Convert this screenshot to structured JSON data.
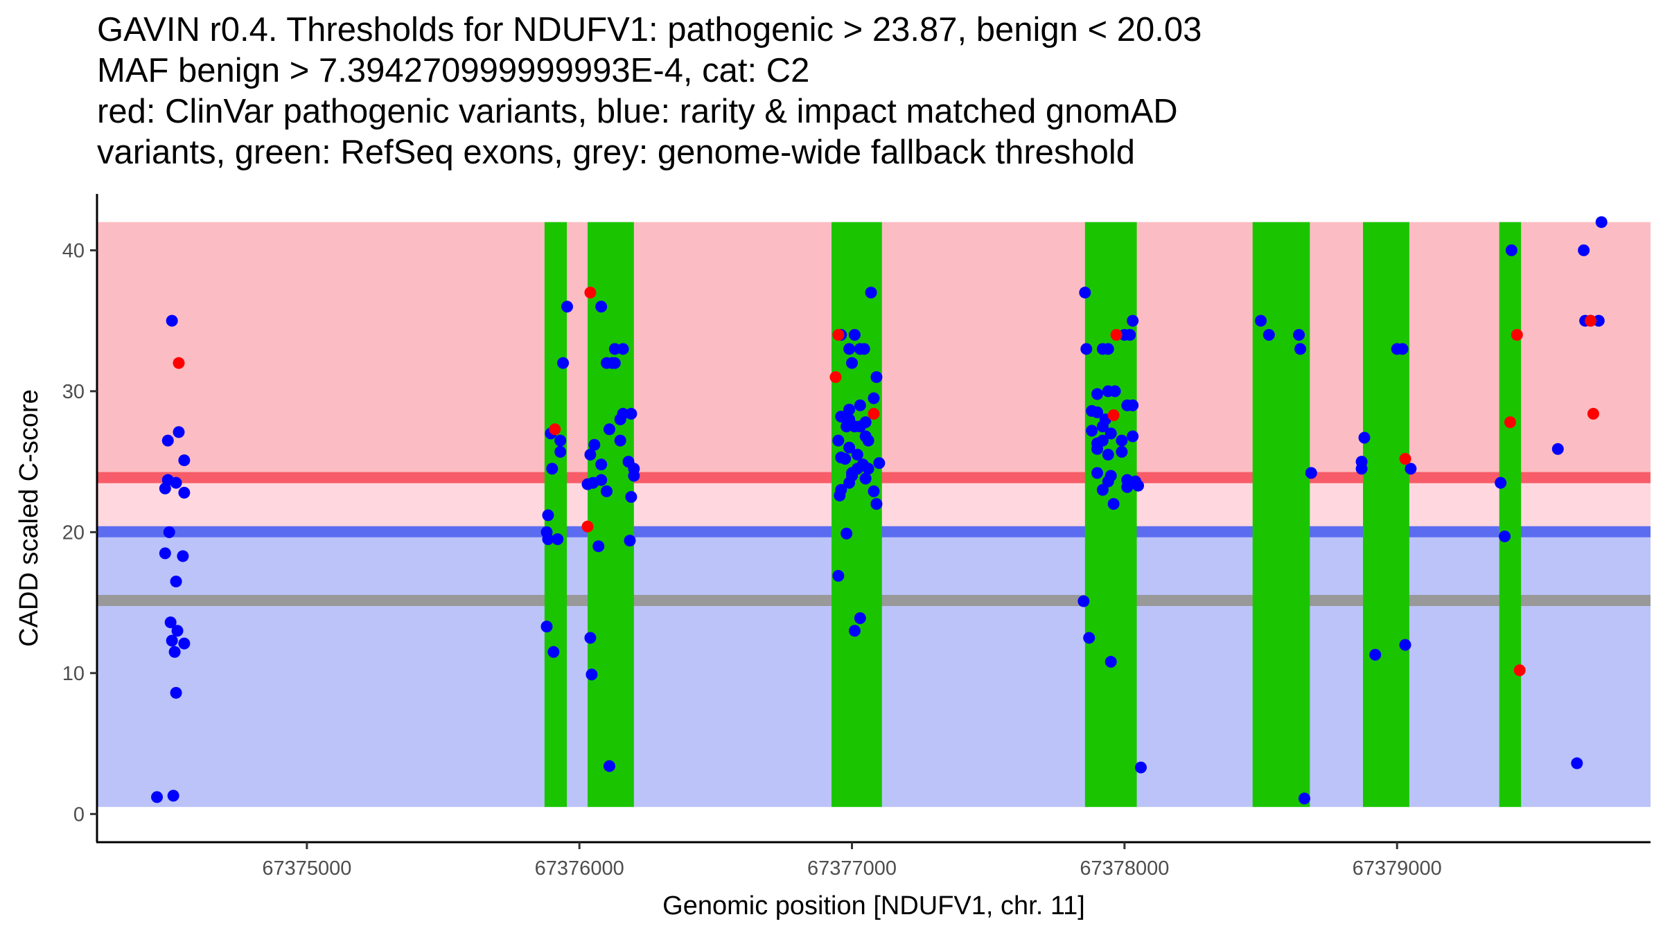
{
  "chart_data": {
    "type": "scatter",
    "title_lines": [
      "GAVIN r0.4. Thresholds for NDUFV1: pathogenic > 23.87, benign < 20.03",
      "MAF benign > 7.394270999999993E-4, cat: C2",
      "red: ClinVar pathogenic variants, blue: rarity & impact matched gnomAD",
      "variants, green: RefSeq exons, grey: genome-wide fallback threshold"
    ],
    "xlabel": "Genomic position [NDUFV1, chr. 11]",
    "ylabel": "CADD scaled C-score",
    "xlim": [
      67374230,
      67379930
    ],
    "ylim": [
      -2,
      44
    ],
    "x_ticks": [
      67375000,
      67376000,
      67377000,
      67378000,
      67379000
    ],
    "x_tick_labels": [
      "67375000",
      "67376000",
      "67377000",
      "67378000",
      "67379000"
    ],
    "y_ticks": [
      0,
      10,
      20,
      30,
      40
    ],
    "y_tick_labels": [
      "0",
      "10",
      "20",
      "30",
      "40"
    ],
    "colors": {
      "pathogenic_region": "#fbbdc3",
      "intermediate_region": "#fed8de",
      "benign_region": "#bbc3f8",
      "pathogenic_line": "#f75c68",
      "benign_line": "#5c6cf0",
      "fallback_line": "#999999",
      "exon": "#1ac500",
      "pathogenic_point": "#ff0000",
      "gnomad_point": "#0000ff",
      "axis": "#000000"
    },
    "regions": [
      {
        "name": "pathogenic",
        "y_from": 23.87,
        "y_to": 42
      },
      {
        "name": "intermediate",
        "y_from": 20.03,
        "y_to": 23.87
      },
      {
        "name": "benign",
        "y_from": 0.5,
        "y_to": 20.03
      }
    ],
    "thresholds": {
      "pathogenic": 23.87,
      "benign": 20.03,
      "fallback": 15.15
    },
    "exons": [
      [
        67375872,
        67375954
      ],
      [
        67376030,
        67376200
      ],
      [
        67376925,
        67377110
      ],
      [
        67377855,
        67378045
      ],
      [
        67378470,
        67378680
      ],
      [
        67378875,
        67379045
      ],
      [
        67379375,
        67379455
      ]
    ],
    "series": [
      {
        "name": "gnomAD matched variants",
        "color": "#0000ff",
        "points": [
          [
            67374450,
            1.2
          ],
          [
            67374510,
            1.3
          ],
          [
            67374505,
            35
          ],
          [
            67374490,
            26.5
          ],
          [
            67374530,
            27.1
          ],
          [
            67374550,
            25.1
          ],
          [
            67374490,
            23.7
          ],
          [
            67374480,
            23.1
          ],
          [
            67374520,
            23.5
          ],
          [
            67374550,
            22.8
          ],
          [
            67374495,
            20
          ],
          [
            67374480,
            18.5
          ],
          [
            67374545,
            18.3
          ],
          [
            67374520,
            16.5
          ],
          [
            67374500,
            13.6
          ],
          [
            67374525,
            13
          ],
          [
            67374505,
            12.3
          ],
          [
            67374550,
            12.1
          ],
          [
            67374515,
            11.5
          ],
          [
            67374520,
            8.6
          ],
          [
            67375885,
            21.2
          ],
          [
            67375880,
            20
          ],
          [
            67375885,
            19.5
          ],
          [
            67375920,
            19.5
          ],
          [
            67375900,
            24.5
          ],
          [
            67375930,
            26.5
          ],
          [
            67375940,
            32
          ],
          [
            67375955,
            36
          ],
          [
            67375895,
            27
          ],
          [
            67375930,
            25.7
          ],
          [
            67375880,
            13.3
          ],
          [
            67375905,
            11.5
          ],
          [
            67376055,
            26.2
          ],
          [
            67376040,
            25.5
          ],
          [
            67376080,
            24.8
          ],
          [
            67376050,
            23.5
          ],
          [
            67376030,
            23.4
          ],
          [
            67376080,
            23.7
          ],
          [
            67376070,
            19
          ],
          [
            67376100,
            22.9
          ],
          [
            67376040,
            12.5
          ],
          [
            67376045,
            9.9
          ],
          [
            67376110,
            3.4
          ],
          [
            67376080,
            36
          ],
          [
            67376100,
            32
          ],
          [
            67376120,
            32
          ],
          [
            67376130,
            33
          ],
          [
            67376160,
            33
          ],
          [
            67376130,
            32
          ],
          [
            67376110,
            27.3
          ],
          [
            67376160,
            28.4
          ],
          [
            67376190,
            28.4
          ],
          [
            67376150,
            26.5
          ],
          [
            67376150,
            28
          ],
          [
            67376180,
            25
          ],
          [
            67376200,
            24.5
          ],
          [
            67376200,
            24
          ],
          [
            67376190,
            22.5
          ],
          [
            67376185,
            19.4
          ],
          [
            67376960,
            34
          ],
          [
            67376990,
            33
          ],
          [
            67377010,
            34
          ],
          [
            67377030,
            33
          ],
          [
            67377045,
            33
          ],
          [
            67377000,
            32
          ],
          [
            67377070,
            37
          ],
          [
            67377090,
            31
          ],
          [
            67377080,
            29.5
          ],
          [
            67377030,
            29
          ],
          [
            67376990,
            28.7
          ],
          [
            67376960,
            28.2
          ],
          [
            67376990,
            28
          ],
          [
            67376980,
            27.5
          ],
          [
            67377010,
            27.5
          ],
          [
            67377030,
            27.5
          ],
          [
            67377050,
            27.8
          ],
          [
            67377060,
            26.5
          ],
          [
            67376950,
            26.5
          ],
          [
            67376990,
            26
          ],
          [
            67377020,
            25.5
          ],
          [
            67377050,
            26.8
          ],
          [
            67376960,
            25.3
          ],
          [
            67376975,
            25.2
          ],
          [
            67377000,
            24.2
          ],
          [
            67377020,
            24.5
          ],
          [
            67377040,
            24.8
          ],
          [
            67377060,
            24.5
          ],
          [
            67377100,
            24.9
          ],
          [
            67377000,
            24
          ],
          [
            67377050,
            23.8
          ],
          [
            67376960,
            23
          ],
          [
            67376955,
            22.6
          ],
          [
            67376990,
            23.5
          ],
          [
            67377080,
            22.9
          ],
          [
            67377090,
            22
          ],
          [
            67376980,
            19.9
          ],
          [
            67376950,
            16.9
          ],
          [
            67377030,
            13.9
          ],
          [
            67377010,
            13
          ],
          [
            67377855,
            37
          ],
          [
            67377860,
            33
          ],
          [
            67377920,
            33
          ],
          [
            67377940,
            33
          ],
          [
            67377940,
            30
          ],
          [
            67377965,
            30
          ],
          [
            67377900,
            29.8
          ],
          [
            67377880,
            28.6
          ],
          [
            67377900,
            28.5
          ],
          [
            67378010,
            29
          ],
          [
            67378030,
            29
          ],
          [
            67377930,
            28
          ],
          [
            67377920,
            27.5
          ],
          [
            67377880,
            27.2
          ],
          [
            67377920,
            26.5
          ],
          [
            67377950,
            27
          ],
          [
            67377990,
            26.5
          ],
          [
            67378030,
            26.8
          ],
          [
            67377900,
            26.3
          ],
          [
            67377900,
            25.9
          ],
          [
            67377940,
            25.5
          ],
          [
            67377990,
            25.7
          ],
          [
            67377900,
            24.2
          ],
          [
            67377950,
            24
          ],
          [
            67377940,
            23.6
          ],
          [
            67378010,
            23.7
          ],
          [
            67378040,
            23.6
          ],
          [
            67378050,
            23.3
          ],
          [
            67377920,
            23
          ],
          [
            67377960,
            22
          ],
          [
            67378010,
            23.2
          ],
          [
            67377850,
            15.1
          ],
          [
            67377870,
            12.5
          ],
          [
            67377950,
            10.8
          ],
          [
            67378060,
            3.3
          ],
          [
            67378020,
            34
          ],
          [
            67378030,
            35
          ],
          [
            67378000,
            34
          ],
          [
            67378500,
            35
          ],
          [
            67378530,
            34
          ],
          [
            67378640,
            34
          ],
          [
            67378645,
            33
          ],
          [
            67378685,
            24.2
          ],
          [
            67378660,
            1.1
          ],
          [
            67378880,
            26.7
          ],
          [
            67378870,
            25
          ],
          [
            67378870,
            24.5
          ],
          [
            67378920,
            11.3
          ],
          [
            67379000,
            33
          ],
          [
            67379020,
            33
          ],
          [
            67379050,
            24.5
          ],
          [
            67379030,
            12
          ],
          [
            67379380,
            23.5
          ],
          [
            67379395,
            19.7
          ],
          [
            67379420,
            40
          ],
          [
            67379590,
            25.9
          ],
          [
            67379660,
            3.6
          ],
          [
            67379685,
            40
          ],
          [
            67379690,
            35
          ],
          [
            67379710,
            35
          ],
          [
            67379740,
            35
          ],
          [
            67379750,
            42
          ]
        ]
      },
      {
        "name": "ClinVar pathogenic variants",
        "color": "#ff0000",
        "points": [
          [
            67374530,
            32
          ],
          [
            67375910,
            27.3
          ],
          [
            67376030,
            20.4
          ],
          [
            67376040,
            37
          ],
          [
            67376950,
            34
          ],
          [
            67376940,
            31
          ],
          [
            67377080,
            28.4
          ],
          [
            67377970,
            34
          ],
          [
            67377960,
            28.3
          ],
          [
            67379030,
            25.2
          ],
          [
            67379415,
            27.8
          ],
          [
            67379440,
            34
          ],
          [
            67379450,
            10.2
          ],
          [
            67379710,
            35
          ],
          [
            67379720,
            28.4
          ]
        ]
      }
    ]
  }
}
